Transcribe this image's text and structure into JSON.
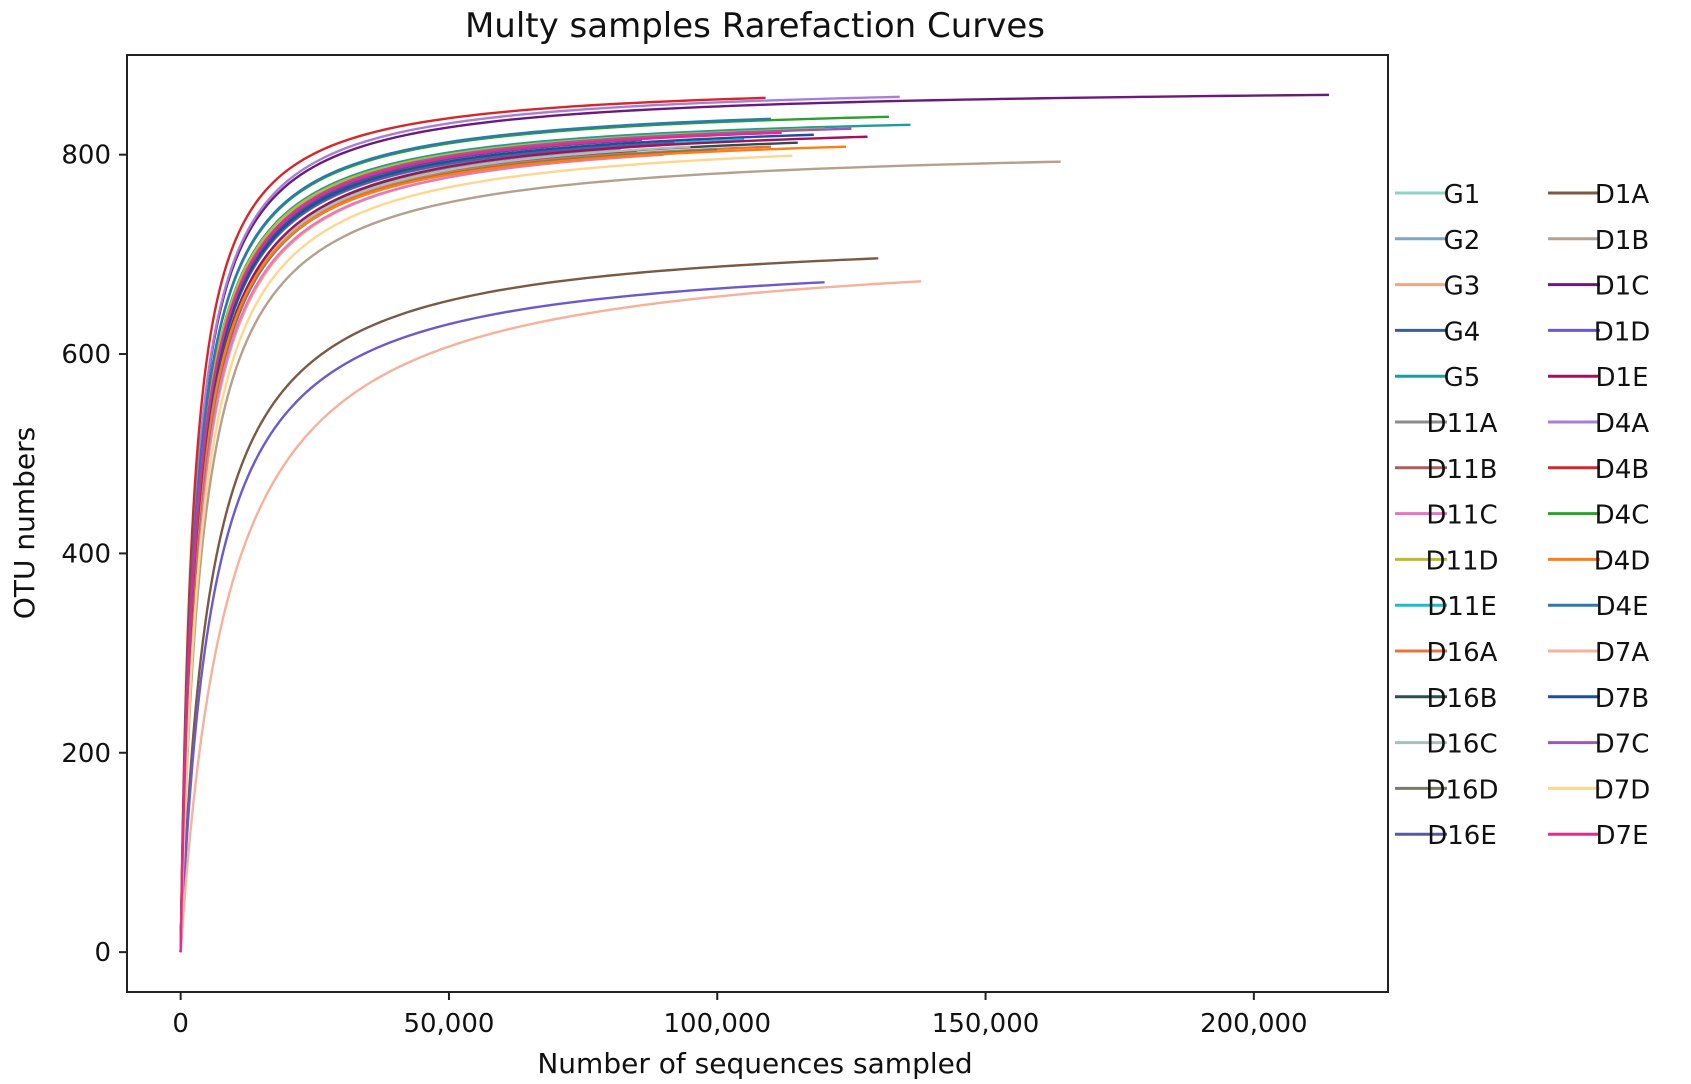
{
  "chart_data": {
    "type": "line",
    "title": "Multy samples Rarefaction Curves",
    "xlabel": "Number of sequences sampled",
    "ylabel": "OTU numbers",
    "xlim": [
      -10000,
      225000
    ],
    "ylim": [
      -40,
      900
    ],
    "x_ticks": [
      0,
      50000,
      100000,
      150000,
      200000
    ],
    "x_tick_labels": [
      "0",
      "50,000",
      "100,000",
      "150,000",
      "200,000"
    ],
    "y_ticks": [
      0,
      200,
      400,
      600,
      800
    ],
    "y_tick_labels": [
      "0",
      "200",
      "400",
      "600",
      "800"
    ],
    "grid": false,
    "legend_position": "right",
    "legend_columns": 2,
    "series": [
      {
        "name": "G1",
        "color": "#8fd3c2",
        "max_x": 80000,
        "max_y": 810,
        "half_x": 3000
      },
      {
        "name": "G2",
        "color": "#7aa6c9",
        "max_x": 82000,
        "max_y": 806,
        "half_x": 3300
      },
      {
        "name": "G3",
        "color": "#f4a582",
        "max_x": 76000,
        "max_y": 795,
        "half_x": 3500
      },
      {
        "name": "G4",
        "color": "#3b5b9b",
        "max_x": 86000,
        "max_y": 815,
        "half_x": 3000
      },
      {
        "name": "G5",
        "color": "#1f9c9c",
        "max_x": 136000,
        "max_y": 830,
        "half_x": 2800
      },
      {
        "name": "D11A",
        "color": "#8c8c8c",
        "max_x": 98000,
        "max_y": 813,
        "half_x": 3000
      },
      {
        "name": "D11B",
        "color": "#b05a5a",
        "max_x": 85000,
        "max_y": 803,
        "half_x": 3300
      },
      {
        "name": "D11C",
        "color": "#e377c2",
        "max_x": 90000,
        "max_y": 800,
        "half_x": 3400
      },
      {
        "name": "D11D",
        "color": "#bcbd22",
        "max_x": 120000,
        "max_y": 826,
        "half_x": 2800
      },
      {
        "name": "D11E",
        "color": "#17becf",
        "max_x": 105000,
        "max_y": 815,
        "half_x": 3000
      },
      {
        "name": "D16A",
        "color": "#e8743b",
        "max_x": 110000,
        "max_y": 808,
        "half_x": 3100
      },
      {
        "name": "D16B",
        "color": "#2f4f4f",
        "max_x": 115000,
        "max_y": 812,
        "half_x": 3100
      },
      {
        "name": "D16C",
        "color": "#a8c0bc",
        "max_x": 95000,
        "max_y": 808,
        "half_x": 3200
      },
      {
        "name": "D16D",
        "color": "#7a7a6a",
        "max_x": 100000,
        "max_y": 805,
        "half_x": 3200
      },
      {
        "name": "D16E",
        "color": "#5a5a9a",
        "max_x": 92000,
        "max_y": 812,
        "half_x": 3000
      },
      {
        "name": "D1A",
        "color": "#7b5a44",
        "max_x": 130000,
        "max_y": 696,
        "half_x": 5500
      },
      {
        "name": "D1B",
        "color": "#b5a08e",
        "max_x": 164000,
        "max_y": 793,
        "half_x": 4000
      },
      {
        "name": "D1C",
        "color": "#6a1b7a",
        "max_x": 214000,
        "max_y": 860,
        "half_x": 2600
      },
      {
        "name": "D1D",
        "color": "#6a5acd",
        "max_x": 120000,
        "max_y": 672,
        "half_x": 6000
      },
      {
        "name": "D1E",
        "color": "#a0125a",
        "max_x": 128000,
        "max_y": 818,
        "half_x": 3200
      },
      {
        "name": "D4A",
        "color": "#a87fd8",
        "max_x": 134000,
        "max_y": 858,
        "half_x": 2600
      },
      {
        "name": "D4B",
        "color": "#d62728",
        "max_x": 109000,
        "max_y": 857,
        "half_x": 2300
      },
      {
        "name": "D4C",
        "color": "#2ca02c",
        "max_x": 132000,
        "max_y": 838,
        "half_x": 2700
      },
      {
        "name": "D4D",
        "color": "#ff7f0e",
        "max_x": 124000,
        "max_y": 808,
        "half_x": 3100
      },
      {
        "name": "D4E",
        "color": "#2a78b5",
        "max_x": 110000,
        "max_y": 836,
        "half_x": 2700
      },
      {
        "name": "D7A",
        "color": "#f7b09a",
        "max_x": 138000,
        "max_y": 673,
        "half_x": 9000
      },
      {
        "name": "D7B",
        "color": "#1f4e9c",
        "max_x": 118000,
        "max_y": 820,
        "half_x": 3000
      },
      {
        "name": "D7C",
        "color": "#9b59b6",
        "max_x": 125000,
        "max_y": 826,
        "half_x": 2900
      },
      {
        "name": "D7D",
        "color": "#ffd690",
        "max_x": 114000,
        "max_y": 799,
        "half_x": 3800
      },
      {
        "name": "D7E",
        "color": "#e7298a",
        "max_x": 112000,
        "max_y": 822,
        "half_x": 2900
      }
    ]
  }
}
